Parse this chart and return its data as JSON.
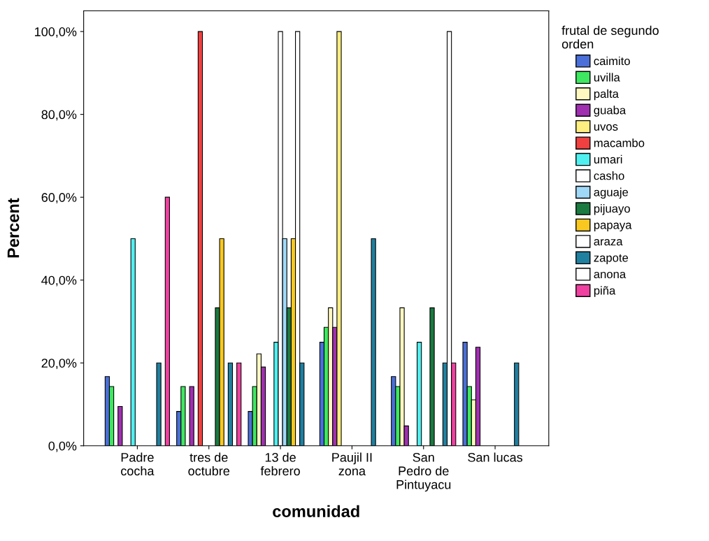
{
  "chart_data": {
    "type": "bar",
    "xlabel": "comunidad",
    "ylabel": "Percent",
    "legend_title": "frutal de segundo\norden",
    "categories": [
      "Padre\ncocha",
      "tres de\noctubre",
      "13 de\nfebrero",
      "Paujil II\nzona",
      "San\nPedro de\nPintuyacu",
      "San lucas"
    ],
    "series": [
      {
        "name": "caimito",
        "color": "#4a6fd8",
        "values": [
          16.7,
          8.3,
          8.3,
          25,
          16.7,
          25
        ]
      },
      {
        "name": "uvilla",
        "color": "#3ee860",
        "values": [
          14.3,
          14.3,
          14.3,
          28.6,
          14.3,
          14.3
        ]
      },
      {
        "name": "palta",
        "color": "#fff8c0",
        "values": [
          null,
          null,
          22.2,
          33.3,
          33.3,
          11.1
        ]
      },
      {
        "name": "guaba",
        "color": "#a030b0",
        "values": [
          9.5,
          14.3,
          19,
          28.6,
          4.8,
          23.8
        ]
      },
      {
        "name": "uvos",
        "color": "#ffee80",
        "values": [
          null,
          null,
          null,
          100,
          null,
          null
        ]
      },
      {
        "name": "macambo",
        "color": "#f04040",
        "values": [
          null,
          100,
          null,
          null,
          null,
          null
        ]
      },
      {
        "name": "umari",
        "color": "#50f0f0",
        "values": [
          50,
          null,
          25,
          null,
          25,
          null
        ]
      },
      {
        "name": "casho",
        "color": "#ffffff",
        "values": [
          null,
          null,
          100,
          null,
          null,
          null
        ]
      },
      {
        "name": "aguaje",
        "color": "#a0d8f8",
        "values": [
          null,
          null,
          50,
          null,
          null,
          null
        ]
      },
      {
        "name": "pijuayo",
        "color": "#1a7a40",
        "values": [
          null,
          33.3,
          33.3,
          null,
          33.3,
          null
        ]
      },
      {
        "name": "papaya",
        "color": "#f8c820",
        "values": [
          null,
          50,
          50,
          null,
          null,
          null
        ]
      },
      {
        "name": "araza",
        "color": "#ffffff",
        "values": [
          null,
          null,
          100,
          null,
          null,
          null
        ]
      },
      {
        "name": "zapote",
        "color": "#2080a0",
        "values": [
          20,
          20,
          20,
          50,
          20,
          20
        ]
      },
      {
        "name": "anona",
        "color": "#ffffff",
        "values": [
          null,
          null,
          null,
          null,
          100,
          null
        ]
      },
      {
        "name": "piña",
        "color": "#f040a0",
        "values": [
          60,
          20,
          null,
          null,
          20,
          null
        ]
      }
    ],
    "ylim": [
      0,
      105
    ],
    "yticks": [
      {
        "value": 0,
        "label": "0,0%"
      },
      {
        "value": 20,
        "label": "20,0%"
      },
      {
        "value": 40,
        "label": "40,0%"
      },
      {
        "value": 60,
        "label": "60,0%"
      },
      {
        "value": 80,
        "label": "80,0%"
      },
      {
        "value": 100,
        "label": "100,0%"
      }
    ],
    "legend": "right"
  }
}
